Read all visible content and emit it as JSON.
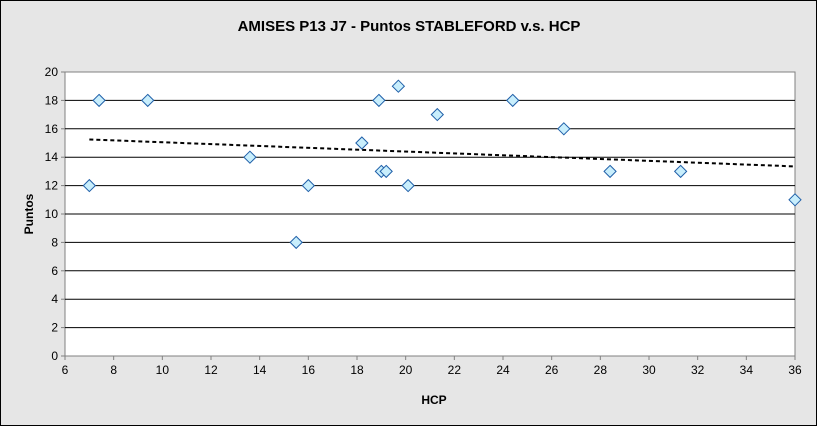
{
  "chart_data": {
    "type": "scatter",
    "title": "AMISES P13 J7 - Puntos STABLEFORD v.s. HCP",
    "xlabel": "HCP",
    "ylabel": "Puntos",
    "xlim": [
      6,
      36
    ],
    "ylim": [
      0,
      20
    ],
    "xticks": [
      "6",
      "8",
      "10",
      "12",
      "14",
      "16",
      "18",
      "20",
      "22",
      "24",
      "26",
      "28",
      "30",
      "32",
      "34",
      "36"
    ],
    "yticks": [
      "0",
      "2",
      "4",
      "6",
      "8",
      "10",
      "12",
      "14",
      "16",
      "18",
      "20"
    ],
    "grid": "horizontal",
    "legend": "none",
    "marker": "diamond",
    "colors": {
      "background": "#e6e6e6",
      "plot_area": "#ffffff",
      "marker_fill": "#c8eefc",
      "marker_stroke": "#1f5fa8",
      "trendline": "#000000"
    },
    "points": [
      {
        "x": 7.0,
        "y": 12
      },
      {
        "x": 7.4,
        "y": 18
      },
      {
        "x": 9.4,
        "y": 18
      },
      {
        "x": 13.6,
        "y": 14
      },
      {
        "x": 15.5,
        "y": 8
      },
      {
        "x": 16.0,
        "y": 12
      },
      {
        "x": 18.2,
        "y": 15
      },
      {
        "x": 18.9,
        "y": 18
      },
      {
        "x": 19.0,
        "y": 13
      },
      {
        "x": 19.2,
        "y": 13
      },
      {
        "x": 19.7,
        "y": 19
      },
      {
        "x": 20.1,
        "y": 12
      },
      {
        "x": 21.3,
        "y": 17
      },
      {
        "x": 24.4,
        "y": 18
      },
      {
        "x": 26.5,
        "y": 16
      },
      {
        "x": 28.4,
        "y": 13
      },
      {
        "x": 31.3,
        "y": 13
      },
      {
        "x": 36.0,
        "y": 11
      }
    ],
    "trendline": {
      "type": "linear",
      "style": "dashed",
      "x": [
        7.0,
        36.0
      ],
      "y": [
        15.25,
        13.35
      ]
    }
  }
}
